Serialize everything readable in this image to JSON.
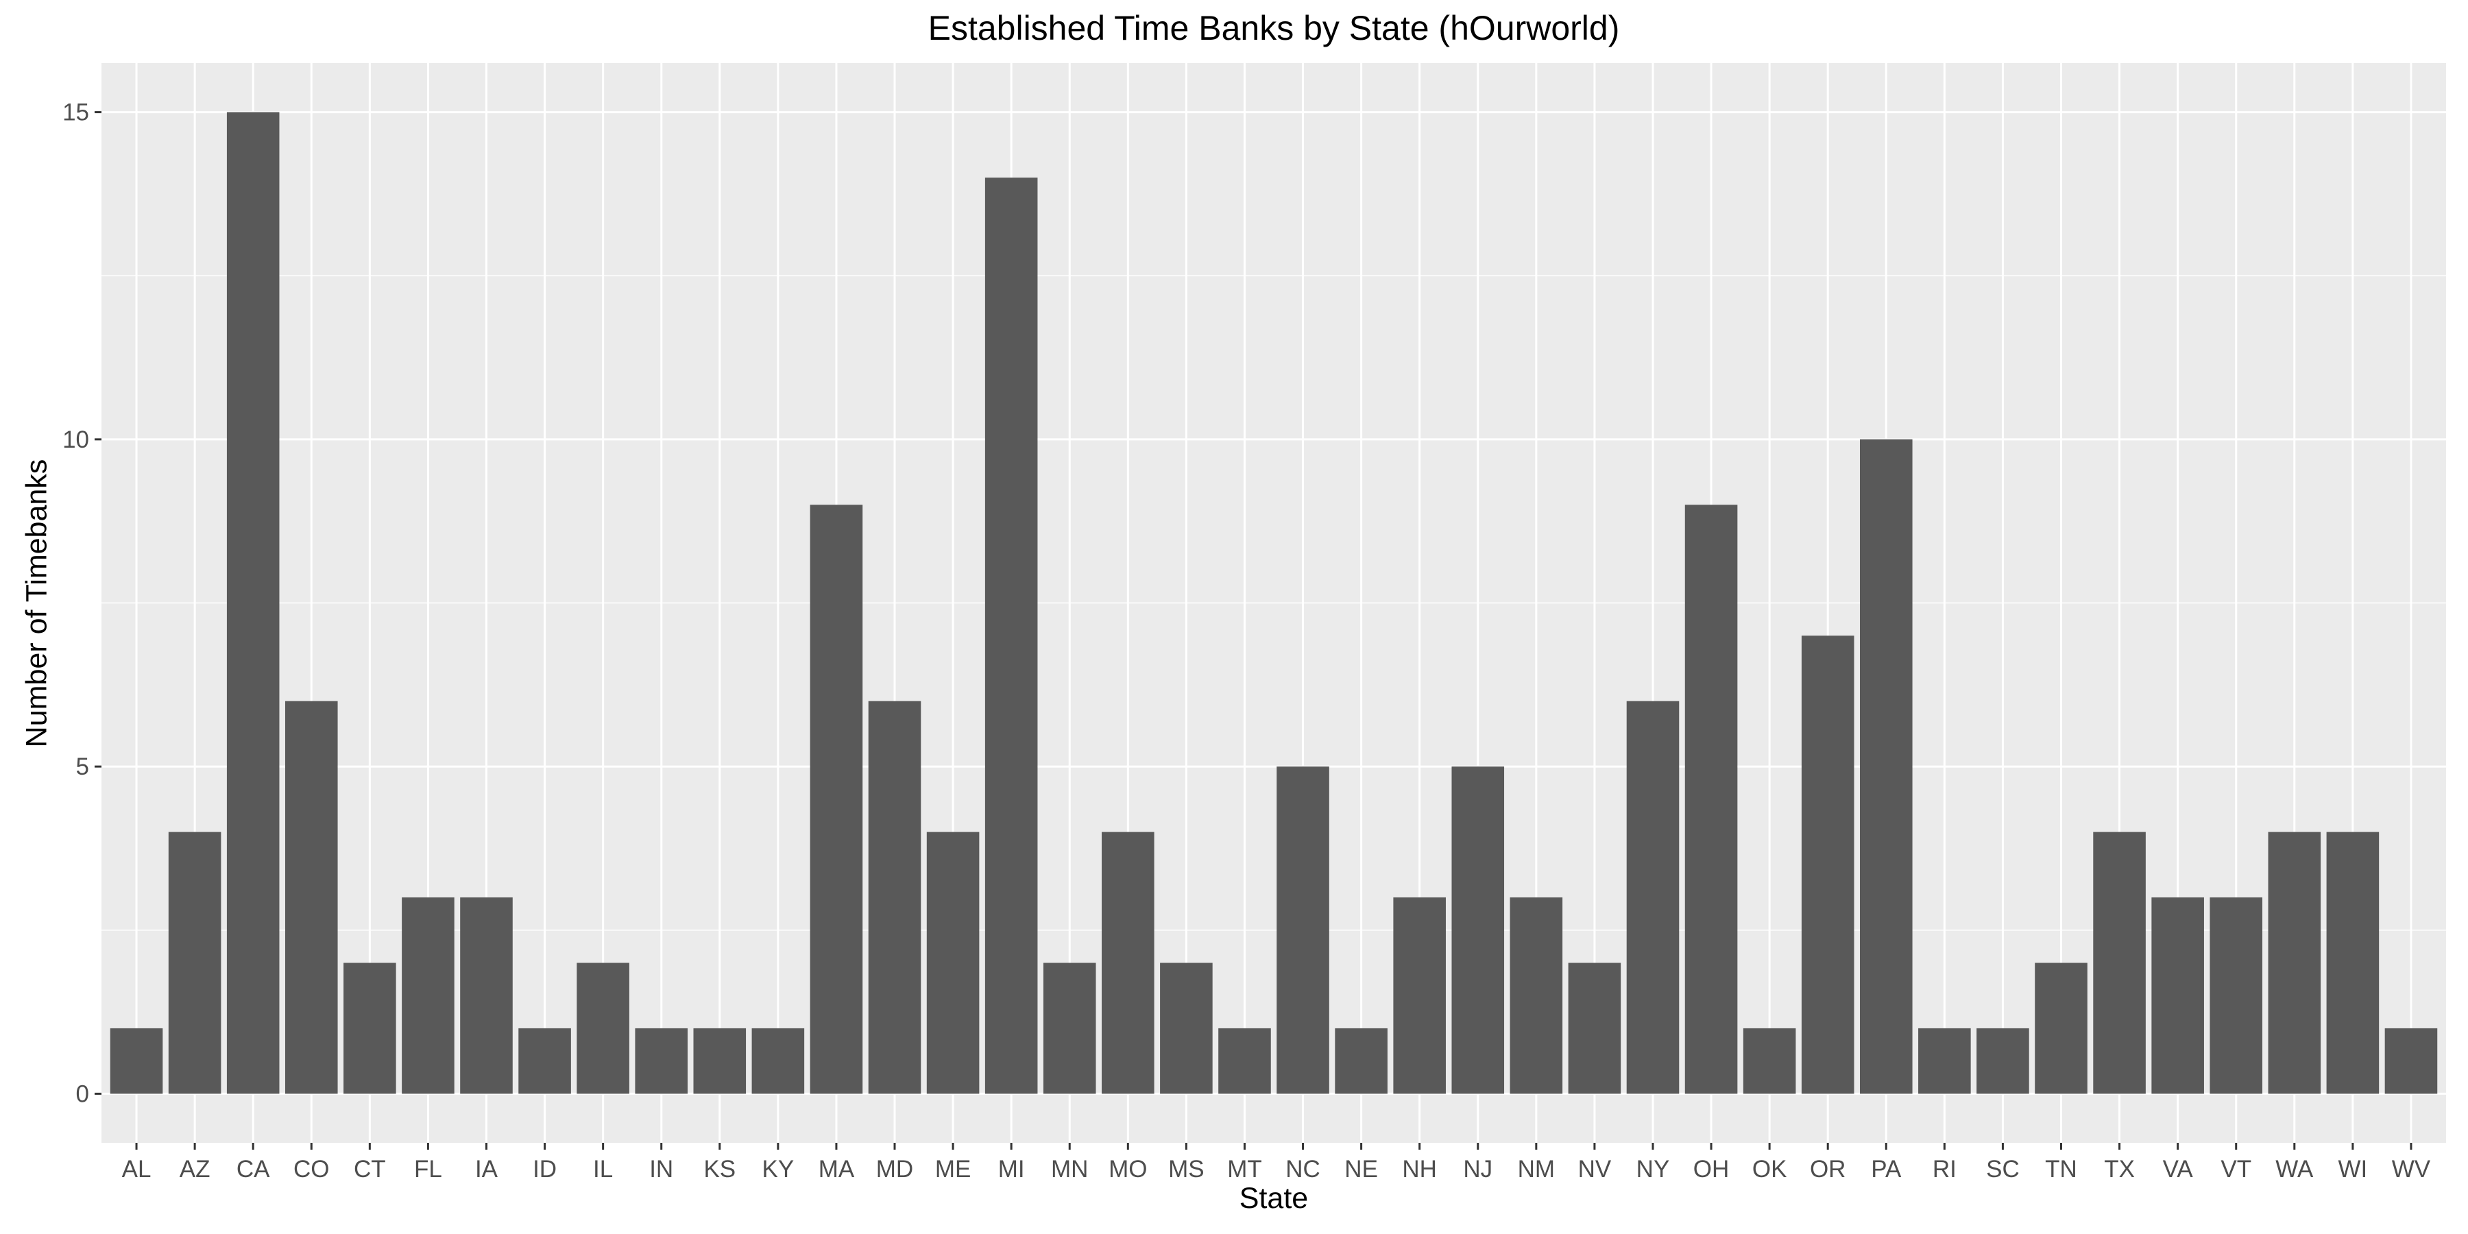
{
  "chart_data": {
    "type": "bar",
    "title": "Established Time Banks by State (hOurworld)",
    "xlabel": "State",
    "ylabel": "Number of Timebanks",
    "categories": [
      "AL",
      "AZ",
      "CA",
      "CO",
      "CT",
      "FL",
      "IA",
      "ID",
      "IL",
      "IN",
      "KS",
      "KY",
      "MA",
      "MD",
      "ME",
      "MI",
      "MN",
      "MO",
      "MS",
      "MT",
      "NC",
      "NE",
      "NH",
      "NJ",
      "NM",
      "NV",
      "NY",
      "OH",
      "OK",
      "OR",
      "PA",
      "RI",
      "SC",
      "TN",
      "TX",
      "VA",
      "VT",
      "WA",
      "WI",
      "WV"
    ],
    "values": [
      1,
      4,
      15,
      6,
      2,
      3,
      3,
      1,
      2,
      1,
      1,
      1,
      9,
      6,
      4,
      14,
      2,
      4,
      2,
      1,
      5,
      1,
      3,
      5,
      3,
      2,
      6,
      9,
      1,
      7,
      10,
      1,
      1,
      2,
      4,
      3,
      3,
      4,
      4,
      1
    ],
    "ylim": [
      -0.75,
      15.75
    ],
    "yticks": [
      0,
      5,
      10,
      15
    ],
    "grid": true,
    "colors": {
      "bar": "#595959",
      "panel": "#ebebeb",
      "grid": "#ffffff",
      "tick": "#4d4d4d"
    }
  }
}
